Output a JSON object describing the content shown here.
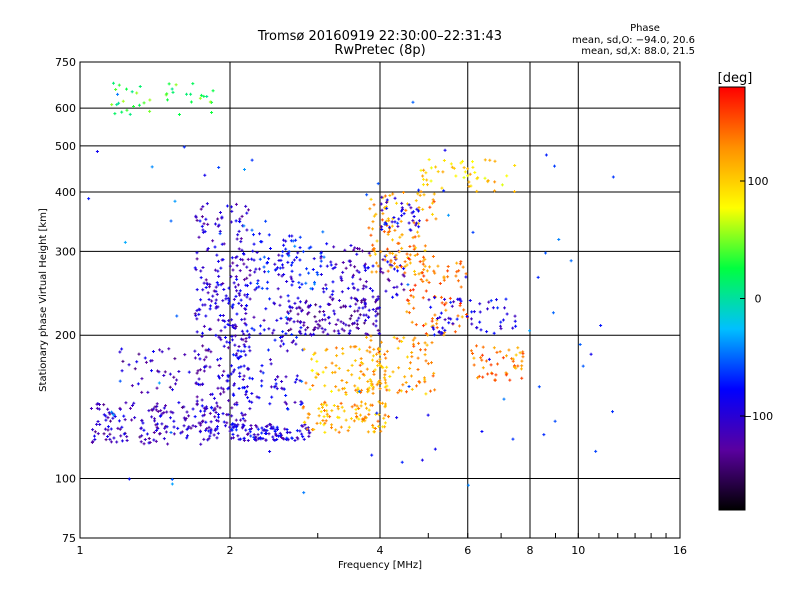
{
  "chart_data": {
    "type": "scatter",
    "title": "Tromsø 20160919 22:30:00–22:31:43",
    "subtitle": "RwPretec (8p)",
    "xlabel": "Frequency [MHz]",
    "ylabel": "Stationary phase Virtual Height [km]",
    "x_scale": "log",
    "y_scale": "log",
    "xlim": [
      1,
      16
    ],
    "ylim": [
      75,
      750
    ],
    "x_ticks": [
      {
        "v": 1,
        "label": "1"
      },
      {
        "v": 2,
        "label": "2"
      },
      {
        "v": 4,
        "label": "4"
      },
      {
        "v": 6,
        "label": "6"
      },
      {
        "v": 8,
        "label": "8"
      },
      {
        "v": 10,
        "label": "10"
      },
      {
        "v": 16,
        "label": "16"
      }
    ],
    "y_ticks": [
      {
        "v": 75,
        "label": "75"
      },
      {
        "v": 100,
        "label": "100"
      },
      {
        "v": 200,
        "label": "200"
      },
      {
        "v": 300,
        "label": "300"
      },
      {
        "v": 400,
        "label": "400"
      },
      {
        "v": 500,
        "label": "500"
      },
      {
        "v": 600,
        "label": "600"
      },
      {
        "v": 750,
        "label": "750"
      }
    ],
    "grid": true,
    "stats": {
      "heading": "Phase",
      "line1": "mean, sd,O: −94.0, 20.6",
      "line2": "mean, sd,X:  88.0, 21.5"
    },
    "colorbar": {
      "label": "[deg]",
      "range": [
        -180,
        180
      ],
      "ticks": [
        {
          "v": 100,
          "label": "100"
        },
        {
          "v": 0,
          "label": "0"
        },
        {
          "v": -100,
          "label": "−100"
        }
      ],
      "colors": [
        "#000000",
        "#5a00a0",
        "#0000ff",
        "#00c0ff",
        "#00ff40",
        "#ffff00",
        "#ff9000",
        "#ff0000"
      ]
    },
    "clusters": [
      {
        "fmin": 1.05,
        "fmax": 1.9,
        "hmin": 118,
        "hmax": 145,
        "phase": -110,
        "n": 180
      },
      {
        "fmin": 1.2,
        "fmax": 1.8,
        "hmin": 150,
        "hmax": 190,
        "phase": -110,
        "n": 40
      },
      {
        "fmin": 1.7,
        "fmax": 2.2,
        "hmin": 125,
        "hmax": 380,
        "phase": -105,
        "n": 300
      },
      {
        "fmin": 2.0,
        "fmax": 2.9,
        "hmin": 120,
        "hmax": 130,
        "phase": -95,
        "n": 120
      },
      {
        "fmin": 2.0,
        "fmax": 2.8,
        "hmin": 140,
        "hmax": 300,
        "phase": -95,
        "n": 150
      },
      {
        "fmin": 2.2,
        "fmax": 3.2,
        "hmin": 250,
        "hmax": 330,
        "phase": -70,
        "n": 70
      },
      {
        "fmin": 2.6,
        "fmax": 4.0,
        "hmin": 200,
        "hmax": 240,
        "phase": -115,
        "n": 150
      },
      {
        "fmin": 2.8,
        "fmax": 4.2,
        "hmin": 125,
        "hmax": 145,
        "phase": 115,
        "n": 100
      },
      {
        "fmin": 2.8,
        "fmax": 4.2,
        "hmin": 150,
        "hmax": 190,
        "phase": 110,
        "n": 80
      },
      {
        "fmin": 3.0,
        "fmax": 4.5,
        "hmin": 240,
        "hmax": 310,
        "phase": -105,
        "n": 90
      },
      {
        "fmin": 3.6,
        "fmax": 5.2,
        "hmin": 150,
        "hmax": 200,
        "phase": 120,
        "n": 90
      },
      {
        "fmin": 3.8,
        "fmax": 5.2,
        "hmin": 270,
        "hmax": 400,
        "phase": 125,
        "n": 120
      },
      {
        "fmin": 4.5,
        "fmax": 6.0,
        "hmin": 200,
        "hmax": 290,
        "phase": 140,
        "n": 80
      },
      {
        "fmin": 4.0,
        "fmax": 4.8,
        "hmin": 330,
        "hmax": 390,
        "phase": -90,
        "n": 40
      },
      {
        "fmin": 4.8,
        "fmax": 7.5,
        "hmin": 400,
        "hmax": 470,
        "phase": 100,
        "n": 50
      },
      {
        "fmin": 5.0,
        "fmax": 7.5,
        "hmin": 200,
        "hmax": 240,
        "phase": -90,
        "n": 60
      },
      {
        "fmin": 6.0,
        "fmax": 7.8,
        "hmin": 160,
        "hmax": 190,
        "phase": 130,
        "n": 50
      },
      {
        "fmin": 1.15,
        "fmax": 1.9,
        "hmin": 580,
        "hmax": 680,
        "phase": 30,
        "n": 40
      },
      {
        "fmin": 1.0,
        "fmax": 12.0,
        "hmin": 90,
        "hmax": 650,
        "phase": -60,
        "n": 80
      }
    ]
  }
}
